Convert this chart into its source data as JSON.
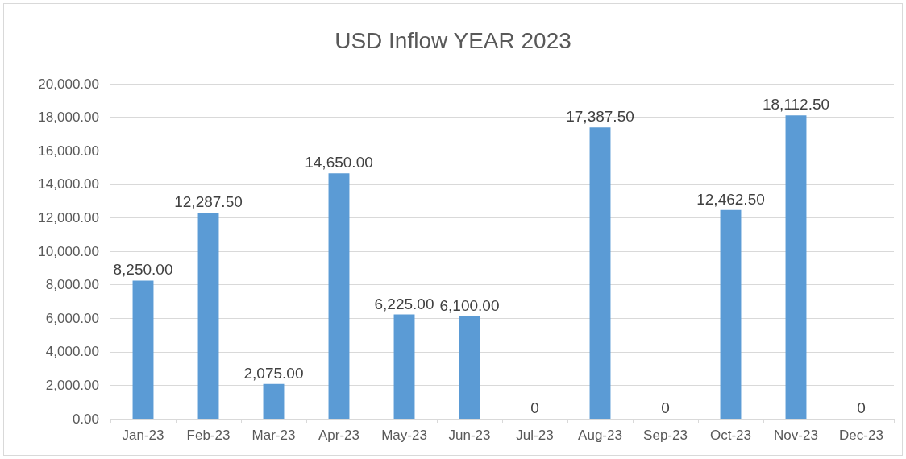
{
  "chart_data": {
    "type": "bar",
    "title": "USD Inflow YEAR 2023",
    "categories": [
      "Jan-23",
      "Feb-23",
      "Mar-23",
      "Apr-23",
      "May-23",
      "Jun-23",
      "Jul-23",
      "Aug-23",
      "Sep-23",
      "Oct-23",
      "Nov-23",
      "Dec-23"
    ],
    "values": [
      8250,
      12287.5,
      2075,
      14650,
      6225,
      6100,
      0,
      17387.5,
      0,
      12462.5,
      18112.5,
      0
    ],
    "value_labels": [
      "8,250.00",
      "12,287.50",
      "2,075.00",
      "14,650.00",
      "6,225.00",
      "6,100.00",
      "0",
      "17,387.50",
      "0",
      "12,462.50",
      "18,112.50",
      "0"
    ],
    "color": "#5b9bd5",
    "ylim": [
      0,
      20000
    ],
    "yticks": [
      {
        "value": 0,
        "label": "0.00"
      },
      {
        "value": 2000,
        "label": "2,000.00"
      },
      {
        "value": 4000,
        "label": "4,000.00"
      },
      {
        "value": 6000,
        "label": "6,000.00"
      },
      {
        "value": 8000,
        "label": "8,000.00"
      },
      {
        "value": 10000,
        "label": "10,000.00"
      },
      {
        "value": 12000,
        "label": "12,000.00"
      },
      {
        "value": 14000,
        "label": "14,000.00"
      },
      {
        "value": 16000,
        "label": "16,000.00"
      },
      {
        "value": 18000,
        "label": "18,000.00"
      },
      {
        "value": 20000,
        "label": "20,000.00"
      }
    ],
    "grid": true
  }
}
